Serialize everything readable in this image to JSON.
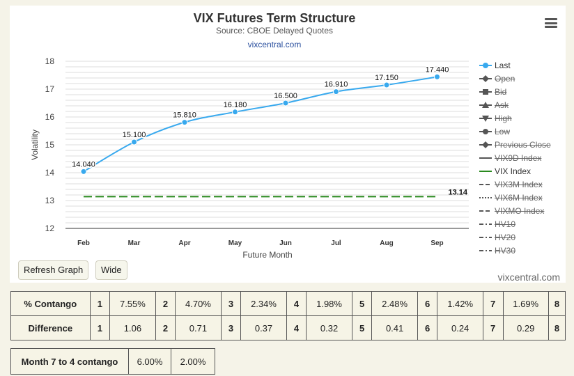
{
  "header": {
    "title": "VIX Futures Term Structure",
    "subtitle": "Source: CBOE Delayed Quotes",
    "link": "vixcentral.com"
  },
  "credit": "vixcentral.com",
  "buttons": {
    "refresh": "Refresh Graph",
    "wide": "Wide"
  },
  "colors": {
    "last": "#38a9ee",
    "vix_index": "#2a8a1f",
    "background": "#f5f3e8"
  },
  "legend": [
    {
      "label": "Last",
      "hidden": false,
      "symbol": "line-dot",
      "color": "#38a9ee"
    },
    {
      "label": "Open",
      "hidden": true,
      "symbol": "line-diamond",
      "color": "#555555"
    },
    {
      "label": "Bid",
      "hidden": true,
      "symbol": "line-square",
      "color": "#555555"
    },
    {
      "label": "Ask",
      "hidden": true,
      "symbol": "line-triangle",
      "color": "#555555"
    },
    {
      "label": "High",
      "hidden": true,
      "symbol": "line-triangle-down",
      "color": "#555555"
    },
    {
      "label": "Low",
      "hidden": true,
      "symbol": "line-dot",
      "color": "#555555"
    },
    {
      "label": "Previous Close",
      "hidden": true,
      "symbol": "line-diamond",
      "color": "#555555"
    },
    {
      "label": "VIX9D Index",
      "hidden": true,
      "symbol": "solid",
      "color": "#555555"
    },
    {
      "label": "VIX Index",
      "hidden": false,
      "symbol": "solid",
      "color": "#2a8a1f"
    },
    {
      "label": "VIX3M Index",
      "hidden": true,
      "symbol": "dash",
      "color": "#555555"
    },
    {
      "label": "VIX6M Index",
      "hidden": true,
      "symbol": "dot",
      "color": "#555555"
    },
    {
      "label": "VIXMO Index",
      "hidden": true,
      "symbol": "dash",
      "color": "#555555"
    },
    {
      "label": "HV10",
      "hidden": true,
      "symbol": "dash-dot",
      "color": "#555555"
    },
    {
      "label": "HV20",
      "hidden": true,
      "symbol": "dash-dot",
      "color": "#555555"
    },
    {
      "label": "HV30",
      "hidden": true,
      "symbol": "dash-dot",
      "color": "#555555"
    }
  ],
  "chart_data": {
    "type": "line",
    "categories": [
      "Feb",
      "Mar",
      "Apr",
      "May",
      "Jun",
      "Jul",
      "Aug",
      "Sep"
    ],
    "series": [
      {
        "name": "Last",
        "values": [
          14.04,
          15.1,
          15.81,
          16.18,
          16.5,
          16.91,
          17.15,
          17.44
        ],
        "labels": [
          "14.040",
          "15.100",
          "15.810",
          "16.180",
          "16.500",
          "16.910",
          "17.150",
          "17.440"
        ]
      },
      {
        "name": "VIX Index",
        "values": [
          13.14,
          13.14,
          13.14,
          13.14,
          13.14,
          13.14,
          13.14,
          13.14
        ],
        "end_label": "13.14",
        "style": "dashed"
      }
    ],
    "xlabel": "Future Month",
    "ylabel": "Volatility",
    "ylim": [
      12,
      18
    ],
    "yticks": [
      "12",
      "13",
      "14",
      "15",
      "16",
      "17",
      "18"
    ],
    "grid": true,
    "legend": "right"
  },
  "contango": {
    "label": "% Contango",
    "cells": [
      {
        "n": "1",
        "v": "7.55%"
      },
      {
        "n": "2",
        "v": "4.70%"
      },
      {
        "n": "3",
        "v": "2.34%"
      },
      {
        "n": "4",
        "v": "1.98%"
      },
      {
        "n": "5",
        "v": "2.48%"
      },
      {
        "n": "6",
        "v": "1.42%"
      },
      {
        "n": "7",
        "v": "1.69%"
      }
    ],
    "last": "8"
  },
  "difference": {
    "label": "Difference",
    "cells": [
      {
        "n": "1",
        "v": "1.06"
      },
      {
        "n": "2",
        "v": "0.71"
      },
      {
        "n": "3",
        "v": "0.37"
      },
      {
        "n": "4",
        "v": "0.32"
      },
      {
        "n": "5",
        "v": "0.41"
      },
      {
        "n": "6",
        "v": "0.24"
      },
      {
        "n": "7",
        "v": "0.29"
      }
    ],
    "last": "8"
  },
  "month74": {
    "label": "Month 7 to 4 contango",
    "v1": "6.00%",
    "v2": "2.00%"
  }
}
